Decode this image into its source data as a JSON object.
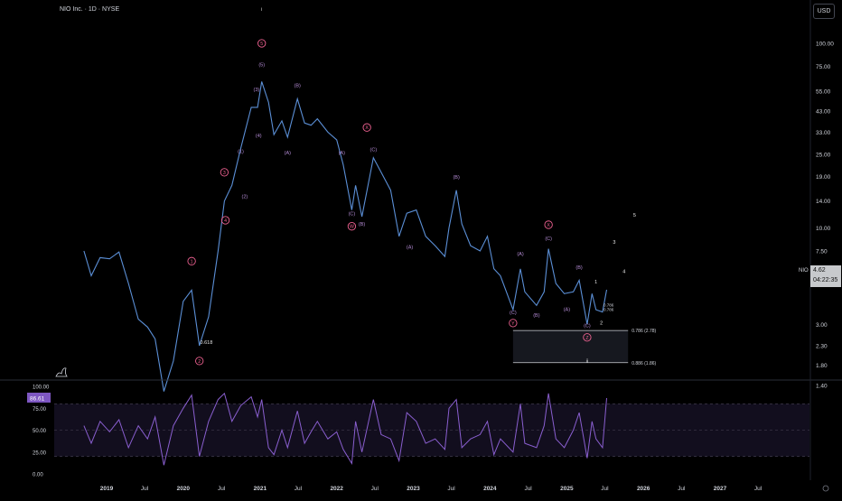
{
  "header": {
    "title": "NIO Inc. · 1D · NYSE",
    "currency_button": "USD"
  },
  "price_badge": {
    "symbol": "NIO",
    "price": "4.62",
    "countdown": "04:22:35"
  },
  "colors": {
    "background": "#000000",
    "price_line": "#5b8fd6",
    "rsi_line": "#8a5fd0",
    "wave_label": "#b58cd6",
    "wave_marker": "#f06292",
    "pane_divider": "#2a2e39"
  },
  "icons": {
    "logo": "dinosaur-icon",
    "settings": "gear-icon"
  },
  "chart_data": [
    {
      "type": "line",
      "scale": "log",
      "ylim": [
        1.1,
        140
      ],
      "y_ticks": [
        "100.00",
        "75.00",
        "55.00",
        "43.00",
        "33.00",
        "25.00",
        "19.00",
        "14.00",
        "10.00",
        "7.50",
        "5.50",
        "3.00",
        "2.30",
        "1.80",
        "1.40"
      ],
      "x_ticks": [
        "2019",
        "Jul",
        "2020",
        "Jul",
        "2021",
        "Jul",
        "2022",
        "Jul",
        "2023",
        "Jul",
        "2024",
        "Jul",
        "2025",
        "Jul",
        "2026",
        "Jul",
        "2027",
        "Jul"
      ],
      "series": [
        {
          "values": [
            {
              "x": "2018-09-15",
              "y": 7.5
            },
            {
              "x": "2018-10-20",
              "y": 5.5
            },
            {
              "x": "2018-12-01",
              "y": 6.9
            },
            {
              "x": "2019-01-15",
              "y": 6.8
            },
            {
              "x": "2019-03-01",
              "y": 7.4
            },
            {
              "x": "2019-04-15",
              "y": 5.0
            },
            {
              "x": "2019-06-01",
              "y": 3.2
            },
            {
              "x": "2019-07-15",
              "y": 2.9
            },
            {
              "x": "2019-08-20",
              "y": 2.5
            },
            {
              "x": "2019-10-01",
              "y": 1.3
            },
            {
              "x": "2019-11-15",
              "y": 1.9
            },
            {
              "x": "2020-01-01",
              "y": 4.0
            },
            {
              "x": "2020-02-10",
              "y": 4.6
            },
            {
              "x": "2020-03-18",
              "y": 2.3
            },
            {
              "x": "2020-05-01",
              "y": 3.3
            },
            {
              "x": "2020-06-15",
              "y": 7.5
            },
            {
              "x": "2020-07-15",
              "y": 14.0
            },
            {
              "x": "2020-08-20",
              "y": 17.0
            },
            {
              "x": "2020-10-01",
              "y": 27.0
            },
            {
              "x": "2020-11-20",
              "y": 45.0
            },
            {
              "x": "2020-12-20",
              "y": 45.0
            },
            {
              "x": "2021-01-09",
              "y": 62.0
            },
            {
              "x": "2021-02-10",
              "y": 48.0
            },
            {
              "x": "2021-03-08",
              "y": 32.0
            },
            {
              "x": "2021-04-15",
              "y": 38.0
            },
            {
              "x": "2021-05-12",
              "y": 31.0
            },
            {
              "x": "2021-06-28",
              "y": 50.0
            },
            {
              "x": "2021-08-01",
              "y": 37.0
            },
            {
              "x": "2021-09-01",
              "y": 36.0
            },
            {
              "x": "2021-10-01",
              "y": 39.0
            },
            {
              "x": "2021-11-20",
              "y": 33.0
            },
            {
              "x": "2022-01-01",
              "y": 30.0
            },
            {
              "x": "2022-02-01",
              "y": 22.0
            },
            {
              "x": "2022-03-14",
              "y": 12.5
            },
            {
              "x": "2022-04-01",
              "y": 17.0
            },
            {
              "x": "2022-05-01",
              "y": 11.5
            },
            {
              "x": "2022-06-25",
              "y": 24.0
            },
            {
              "x": "2022-08-01",
              "y": 20.0
            },
            {
              "x": "2022-09-15",
              "y": 16.0
            },
            {
              "x": "2022-10-25",
              "y": 9.0
            },
            {
              "x": "2022-12-01",
              "y": 12.0
            },
            {
              "x": "2023-01-15",
              "y": 12.5
            },
            {
              "x": "2023-03-01",
              "y": 9.0
            },
            {
              "x": "2023-04-15",
              "y": 8.0
            },
            {
              "x": "2023-05-31",
              "y": 7.0
            },
            {
              "x": "2023-06-20",
              "y": 10.0
            },
            {
              "x": "2023-07-25",
              "y": 16.0
            },
            {
              "x": "2023-08-20",
              "y": 10.5
            },
            {
              "x": "2023-10-01",
              "y": 8.0
            },
            {
              "x": "2023-11-15",
              "y": 7.5
            },
            {
              "x": "2023-12-20",
              "y": 9.0
            },
            {
              "x": "2024-01-20",
              "y": 6.0
            },
            {
              "x": "2024-02-20",
              "y": 5.5
            },
            {
              "x": "2024-04-20",
              "y": 3.6
            },
            {
              "x": "2024-05-25",
              "y": 6.0
            },
            {
              "x": "2024-06-15",
              "y": 4.5
            },
            {
              "x": "2024-08-10",
              "y": 3.8
            },
            {
              "x": "2024-09-15",
              "y": 4.5
            },
            {
              "x": "2024-10-06",
              "y": 7.7
            },
            {
              "x": "2024-11-10",
              "y": 5.0
            },
            {
              "x": "2024-12-20",
              "y": 4.4
            },
            {
              "x": "2025-02-01",
              "y": 4.5
            },
            {
              "x": "2025-03-01",
              "y": 5.2
            },
            {
              "x": "2025-04-08",
              "y": 3.0
            },
            {
              "x": "2025-05-01",
              "y": 4.4
            },
            {
              "x": "2025-05-20",
              "y": 3.6
            },
            {
              "x": "2025-06-20",
              "y": 3.5
            },
            {
              "x": "2025-07-10",
              "y": 4.62
            }
          ]
        }
      ]
    },
    {
      "type": "line",
      "ylim": [
        0,
        100
      ],
      "y_ticks": [
        "100.00",
        "75.00",
        "50.00",
        "25.00",
        "0.00"
      ],
      "current_value": "86.61",
      "series": [
        {
          "values": [
            {
              "x": "2018-09-15",
              "y": 55
            },
            {
              "x": "2018-10-20",
              "y": 35
            },
            {
              "x": "2018-12-01",
              "y": 60
            },
            {
              "x": "2019-01-15",
              "y": 48
            },
            {
              "x": "2019-03-01",
              "y": 62
            },
            {
              "x": "2019-04-15",
              "y": 30
            },
            {
              "x": "2019-06-01",
              "y": 55
            },
            {
              "x": "2019-07-15",
              "y": 40
            },
            {
              "x": "2019-08-20",
              "y": 65
            },
            {
              "x": "2019-10-01",
              "y": 10
            },
            {
              "x": "2019-11-15",
              "y": 55
            },
            {
              "x": "2020-01-01",
              "y": 75
            },
            {
              "x": "2020-02-10",
              "y": 90
            },
            {
              "x": "2020-03-18",
              "y": 20
            },
            {
              "x": "2020-05-01",
              "y": 60
            },
            {
              "x": "2020-06-15",
              "y": 85
            },
            {
              "x": "2020-07-15",
              "y": 92
            },
            {
              "x": "2020-08-20",
              "y": 60
            },
            {
              "x": "2020-10-01",
              "y": 78
            },
            {
              "x": "2020-11-20",
              "y": 88
            },
            {
              "x": "2020-12-20",
              "y": 65
            },
            {
              "x": "2021-01-09",
              "y": 85
            },
            {
              "x": "2021-02-10",
              "y": 30
            },
            {
              "x": "2021-03-08",
              "y": 22
            },
            {
              "x": "2021-04-15",
              "y": 50
            },
            {
              "x": "2021-05-12",
              "y": 30
            },
            {
              "x": "2021-06-28",
              "y": 72
            },
            {
              "x": "2021-08-01",
              "y": 35
            },
            {
              "x": "2021-09-01",
              "y": 48
            },
            {
              "x": "2021-10-01",
              "y": 60
            },
            {
              "x": "2021-11-20",
              "y": 40
            },
            {
              "x": "2022-01-01",
              "y": 48
            },
            {
              "x": "2022-02-01",
              "y": 28
            },
            {
              "x": "2022-03-14",
              "y": 12
            },
            {
              "x": "2022-04-01",
              "y": 60
            },
            {
              "x": "2022-05-01",
              "y": 25
            },
            {
              "x": "2022-06-25",
              "y": 85
            },
            {
              "x": "2022-08-01",
              "y": 45
            },
            {
              "x": "2022-09-15",
              "y": 40
            },
            {
              "x": "2022-10-25",
              "y": 15
            },
            {
              "x": "2022-12-01",
              "y": 70
            },
            {
              "x": "2023-01-15",
              "y": 60
            },
            {
              "x": "2023-03-01",
              "y": 35
            },
            {
              "x": "2023-04-15",
              "y": 40
            },
            {
              "x": "2023-05-31",
              "y": 28
            },
            {
              "x": "2023-06-20",
              "y": 75
            },
            {
              "x": "2023-07-25",
              "y": 85
            },
            {
              "x": "2023-08-20",
              "y": 30
            },
            {
              "x": "2023-10-01",
              "y": 40
            },
            {
              "x": "2023-11-15",
              "y": 45
            },
            {
              "x": "2023-12-20",
              "y": 60
            },
            {
              "x": "2024-01-20",
              "y": 22
            },
            {
              "x": "2024-02-20",
              "y": 40
            },
            {
              "x": "2024-04-20",
              "y": 25
            },
            {
              "x": "2024-05-25",
              "y": 80
            },
            {
              "x": "2024-06-15",
              "y": 35
            },
            {
              "x": "2024-08-10",
              "y": 30
            },
            {
              "x": "2024-09-15",
              "y": 55
            },
            {
              "x": "2024-10-06",
              "y": 92
            },
            {
              "x": "2024-11-10",
              "y": 40
            },
            {
              "x": "2024-12-20",
              "y": 30
            },
            {
              "x": "2025-02-01",
              "y": 50
            },
            {
              "x": "2025-03-01",
              "y": 70
            },
            {
              "x": "2025-04-08",
              "y": 18
            },
            {
              "x": "2025-05-01",
              "y": 60
            },
            {
              "x": "2025-05-20",
              "y": 40
            },
            {
              "x": "2025-06-20",
              "y": 30
            },
            {
              "x": "2025-07-10",
              "y": 86.61
            }
          ]
        }
      ]
    }
  ],
  "annotations": {
    "wave_labels": [
      {
        "text": "(1)",
        "x": "2020-10-01",
        "y": 25.5
      },
      {
        "text": "(2)",
        "x": "2020-10-20",
        "y": 14.5
      },
      {
        "text": "(3)",
        "x": "2020-12-15",
        "y": 55
      },
      {
        "text": "(4)",
        "x": "2020-12-25",
        "y": 31
      },
      {
        "text": "(5)",
        "x": "2021-01-09",
        "y": 75
      },
      {
        "text": "(A)",
        "x": "2021-05-12",
        "y": 25
      },
      {
        "text": "(B)",
        "x": "2021-06-28",
        "y": 58
      },
      {
        "text": "(A)",
        "x": "2022-01-25",
        "y": 25
      },
      {
        "text": "(C)",
        "x": "2022-03-14",
        "y": 11.7
      },
      {
        "text": "(B)",
        "x": "2022-05-01",
        "y": 10.3
      },
      {
        "text": "(C)",
        "x": "2022-06-25",
        "y": 26
      },
      {
        "text": "(A)",
        "x": "2022-12-15",
        "y": 7.7
      },
      {
        "text": "(B)",
        "x": "2023-07-25",
        "y": 18.5
      },
      {
        "text": "(A)",
        "x": "2024-05-25",
        "y": 7.1
      },
      {
        "text": "(C)",
        "x": "2024-04-20",
        "y": 3.4
      },
      {
        "text": "(B)",
        "x": "2024-08-10",
        "y": 3.3
      },
      {
        "text": "(C)",
        "x": "2024-10-06",
        "y": 8.6
      },
      {
        "text": "(A)",
        "x": "2025-01-01",
        "y": 3.55
      },
      {
        "text": "(B)",
        "x": "2025-03-01",
        "y": 6.0
      },
      {
        "text": "(C)",
        "x": "2025-04-08",
        "y": 2.9
      }
    ],
    "circled_labels": [
      {
        "text": "1",
        "x": "2020-02-10",
        "y": 6.6
      },
      {
        "text": "2",
        "x": "2020-03-18",
        "y": 1.9
      },
      {
        "text": "3",
        "x": "2020-07-15",
        "y": 20
      },
      {
        "text": "4",
        "x": "2020-07-20",
        "y": 11.0
      },
      {
        "text": "5",
        "x": "2021-01-09",
        "y": 100
      },
      {
        "text": "W",
        "x": "2022-03-14",
        "y": 10.2
      },
      {
        "text": "X",
        "x": "2022-05-25",
        "y": 35
      },
      {
        "text": "Y",
        "x": "2024-04-20",
        "y": 3.05
      },
      {
        "text": "X",
        "x": "2024-10-06",
        "y": 10.4
      },
      {
        "text": "Z",
        "x": "2025-04-08",
        "y": 2.55
      }
    ],
    "plain_labels": [
      {
        "text": "i",
        "x": "2021-01-09",
        "y": 150
      },
      {
        "text": "ii",
        "x": "2025-04-08",
        "y": 1.87
      },
      {
        "text": "1",
        "x": "2025-05-20",
        "y": 5.0
      },
      {
        "text": "2",
        "x": "2025-06-15",
        "y": 3.0
      },
      {
        "text": "3",
        "x": "2025-08-15",
        "y": 8.2
      },
      {
        "text": "4",
        "x": "2025-10-01",
        "y": 5.7
      },
      {
        "text": "5",
        "x": "2025-11-20",
        "y": 11.5
      },
      {
        "text": "0.618",
        "x": "2020-04-20",
        "y": 2.35
      }
    ],
    "fib_levels": [
      {
        "text": "0.786 (2.78)",
        "price": 2.78,
        "x_from": "2024-04-20",
        "x_to": "2025-10-20"
      },
      {
        "text": "0.886 (1.86)",
        "price": 1.86,
        "x_from": "2024-04-20",
        "x_to": "2025-10-20"
      }
    ],
    "level_labels": [
      {
        "text": "0.786",
        "x": "2025-06-25",
        "y": 3.75
      },
      {
        "text": "0.786",
        "x": "2025-06-25",
        "y": 3.55
      }
    ]
  }
}
